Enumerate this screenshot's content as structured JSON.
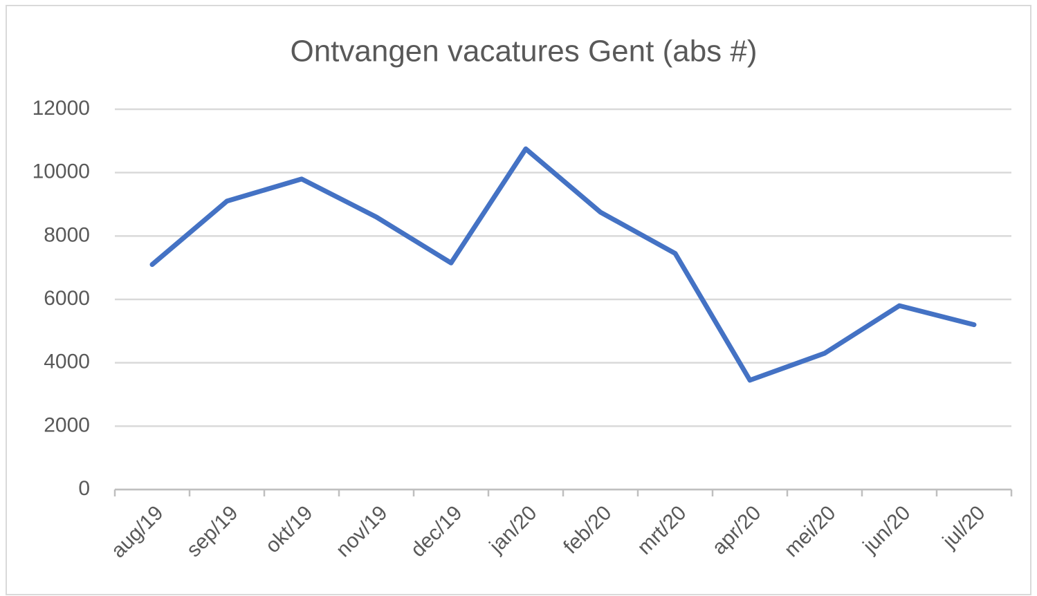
{
  "chart_data": {
    "type": "line",
    "title": "Ontvangen vacatures Gent (abs #)",
    "categories": [
      "aug/19",
      "sep/19",
      "okt/19",
      "nov/19",
      "dec/19",
      "jan/20",
      "feb/20",
      "mrt/20",
      "apr/20",
      "mei/20",
      "jun/20",
      "jul/20"
    ],
    "values": [
      7100,
      9100,
      9800,
      8600,
      7150,
      10750,
      8750,
      7450,
      3450,
      4300,
      5800,
      5200
    ],
    "color": "#4472c4",
    "ylim": [
      0,
      12000
    ],
    "yticks": [
      0,
      2000,
      4000,
      6000,
      8000,
      10000,
      12000
    ],
    "grid": true
  }
}
